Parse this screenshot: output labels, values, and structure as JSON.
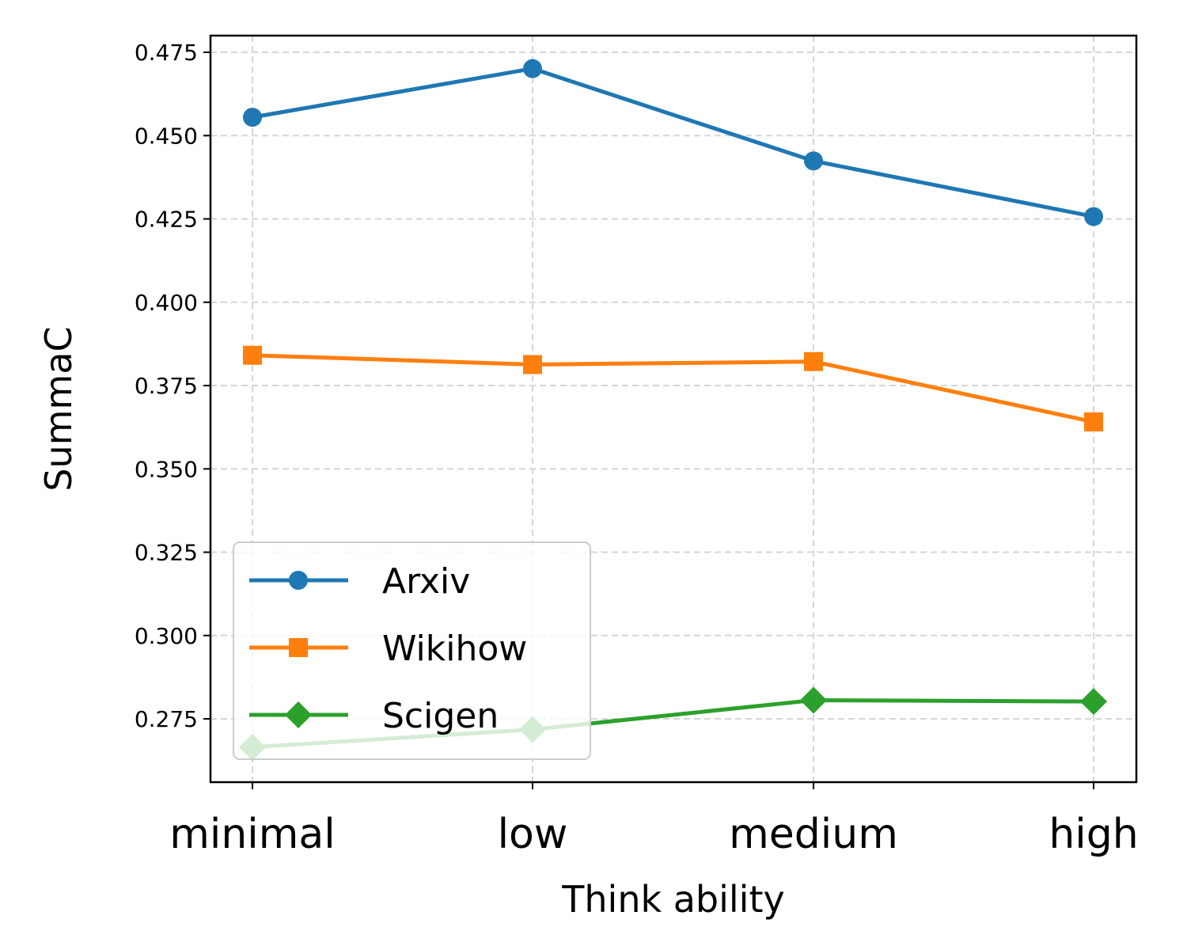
{
  "chart_data": {
    "type": "line",
    "title": "",
    "xlabel": "Think ability",
    "ylabel": "SummaC",
    "categories": [
      "minimal",
      "low",
      "medium",
      "high"
    ],
    "ylim": [
      0.256,
      0.48
    ],
    "yticks": [
      0.275,
      0.3,
      0.325,
      0.35,
      0.375,
      0.4,
      0.425,
      0.45,
      0.475
    ],
    "ytick_labels": [
      "0.275",
      "0.300",
      "0.325",
      "0.350",
      "0.375",
      "0.400",
      "0.425",
      "0.450",
      "0.475"
    ],
    "grid": true,
    "legend_position": "lower-left",
    "series": [
      {
        "name": "Arxiv",
        "color": "#1f77b4",
        "marker": "circle",
        "values": [
          0.4555,
          0.4701,
          0.4424,
          0.4257
        ]
      },
      {
        "name": "Wikihow",
        "color": "#ff7f0e",
        "marker": "square",
        "values": [
          0.3841,
          0.3813,
          0.3822,
          0.3641
        ]
      },
      {
        "name": "Scigen",
        "color": "#2ca02c",
        "marker": "diamond",
        "values": [
          0.2665,
          0.2718,
          0.2806,
          0.2802
        ]
      }
    ]
  }
}
